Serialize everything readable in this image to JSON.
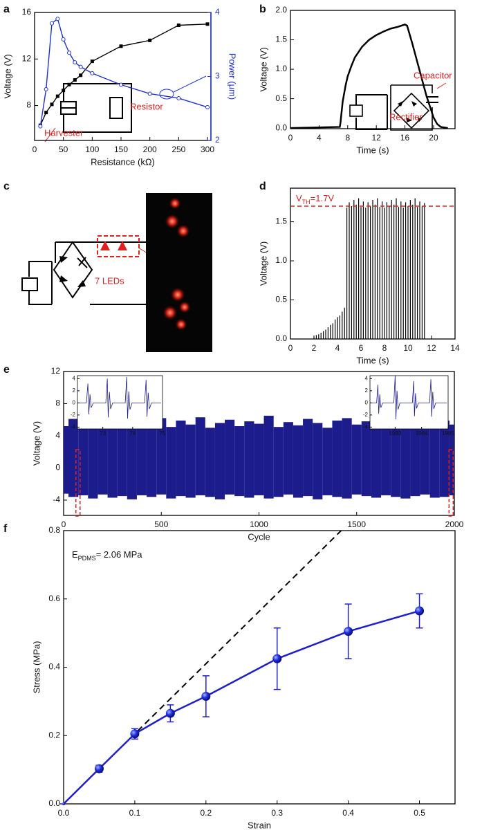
{
  "panel_c": {
    "panel": "c",
    "label": "7 LEDs"
  },
  "chart_data": [
    {
      "panel": "a",
      "type": "line_scatter",
      "x_label": "Resistance (kΩ)",
      "y_label": "Voltage (V)",
      "y2_label": "Power (μm)",
      "x": [
        10,
        20,
        30,
        40,
        50,
        60,
        70,
        80,
        100,
        150,
        200,
        250,
        300
      ],
      "series": [
        {
          "color": "#000000",
          "marker": "square",
          "values": [
            6.3,
            7.4,
            8.1,
            8.8,
            9.3,
            9.8,
            10.2,
            10.6,
            11.8,
            13.1,
            13.6,
            14.9,
            15.0
          ]
        },
        {
          "color": "#1f2fd6",
          "marker": "circle",
          "axis": "y2",
          "values": [
            2.22,
            2.8,
            3.83,
            3.9,
            3.58,
            3.37,
            3.22,
            3.15,
            3.05,
            2.87,
            2.73,
            2.66,
            2.52
          ]
        }
      ],
      "xlim": [
        0,
        306
      ],
      "xticks": [
        0,
        50,
        100,
        150,
        200,
        250,
        300
      ],
      "ylim": [
        5,
        16
      ],
      "yticks": [
        8,
        12,
        16
      ],
      "y2lim": [
        2,
        4
      ],
      "y2ticks": [
        2,
        3,
        4
      ],
      "annotations": [
        "Harvester",
        "Resistor"
      ]
    },
    {
      "panel": "b",
      "type": "line",
      "x_label": "Time (s)",
      "y_label": "Voltage (V)",
      "color": "#000000",
      "x": [
        0,
        6.9,
        7,
        7.3,
        7.7,
        8,
        8.5,
        9,
        10,
        11,
        12,
        13,
        14,
        15,
        16,
        16.3,
        17,
        18,
        19,
        20,
        20.5,
        21,
        22
      ],
      "values": [
        0,
        0.02,
        0.1,
        0.45,
        0.72,
        0.88,
        1.05,
        1.2,
        1.38,
        1.5,
        1.58,
        1.64,
        1.69,
        1.72,
        1.76,
        1.74,
        1.45,
        1.0,
        0.55,
        0.18,
        0.07,
        0.02,
        0.0
      ],
      "xlim": [
        0,
        23
      ],
      "xticks": [
        0,
        4,
        8,
        12,
        16,
        20
      ],
      "ylim": [
        -0.01,
        2.0
      ],
      "yticks": [
        {
          "value": 0,
          "label": "0.0"
        },
        0.5,
        {
          "value": 1,
          "label": "1.0"
        },
        1.5,
        {
          "value": 2,
          "label": "2.0"
        }
      ],
      "annotations": [
        "Capacitor",
        "Rectifier"
      ]
    },
    {
      "panel": "d",
      "type": "spikes",
      "x_label": "Time (s)",
      "y_label": "Voltage (V)",
      "color": "#000000",
      "x": [
        2.0,
        2.2,
        2.4,
        2.6,
        2.8,
        3.0,
        3.2,
        3.4,
        3.6,
        3.8,
        4.0,
        4.2,
        4.4,
        4.6,
        4.8,
        5.0,
        5.2,
        5.4,
        5.6,
        5.8,
        6.0,
        6.2,
        6.4,
        6.6,
        6.8,
        7.0,
        7.2,
        7.4,
        7.6,
        7.8,
        8.0,
        8.2,
        8.4,
        8.6,
        8.8,
        9.0,
        9.2,
        9.4,
        9.6,
        9.8,
        10.0,
        10.2,
        10.4,
        10.6,
        10.8,
        11.0,
        11.2,
        11.4
      ],
      "values": [
        0.03,
        0.05,
        0.06,
        0.08,
        0.1,
        0.12,
        0.15,
        0.18,
        0.2,
        0.25,
        0.28,
        0.3,
        0.35,
        0.4,
        1.68,
        1.75,
        1.7,
        1.78,
        1.72,
        1.8,
        1.69,
        1.76,
        1.68,
        1.75,
        1.7,
        1.78,
        1.72,
        1.8,
        1.69,
        1.76,
        1.68,
        1.75,
        1.7,
        1.78,
        1.72,
        1.8,
        1.69,
        1.76,
        1.68,
        1.75,
        1.7,
        1.78,
        1.72,
        1.8,
        1.69,
        1.76,
        1.7,
        1.74
      ],
      "threshold": {
        "value": 1.7,
        "color": "#e02020",
        "label": [
          "V",
          "TH",
          "=1.7V"
        ]
      },
      "xlim": [
        0,
        14
      ],
      "xticks": [
        0,
        2,
        4,
        6,
        8,
        10,
        12,
        14
      ],
      "ylim": [
        0,
        1.93
      ],
      "yticks": [
        {
          "value": 0,
          "label": "0.0"
        },
        0.5,
        {
          "value": 1,
          "label": "1.0"
        },
        1.5
      ]
    },
    {
      "panel": "e",
      "type": "envelope",
      "x_label": "Cycle",
      "y_label": "Voltage (V)",
      "x": [
        0,
        50,
        100,
        150,
        200,
        250,
        300,
        350,
        400,
        450,
        500,
        550,
        600,
        650,
        700,
        750,
        800,
        850,
        900,
        950,
        1000,
        1050,
        1100,
        1150,
        1200,
        1250,
        1300,
        1350,
        1400,
        1450,
        1500,
        1550,
        1600,
        1650,
        1700,
        1750,
        1800,
        1850,
        1900,
        1950,
        2000
      ],
      "series": [
        {
          "color": "#1c1c8c",
          "values": [
            5.2,
            6.1,
            5.0,
            5.8,
            6.4,
            5.5,
            4.9,
            6.0,
            5.3,
            5.7,
            6.2,
            5.1,
            5.9,
            5.4,
            6.3,
            5.0,
            5.6,
            6.0,
            5.2,
            5.8,
            5.5,
            6.5,
            5.1,
            5.7,
            5.3,
            6.1,
            5.6,
            5.0,
            5.9,
            6.2,
            5.4,
            5.8,
            6.6,
            5.2,
            6.0,
            5.5,
            5.7,
            6.3,
            5.1,
            5.9,
            5.4
          ]
        },
        {
          "color": "#1c1c8c",
          "values": [
            -3.2,
            -3.6,
            -3.4,
            -3.8,
            -3.3,
            -3.7,
            -3.5,
            -3.9,
            -3.4,
            -3.6,
            -3.3,
            -3.8,
            -3.5,
            -3.7,
            -3.4,
            -3.6,
            -3.9,
            -3.3,
            -3.5,
            -3.7,
            -3.4,
            -3.8,
            -3.6,
            -3.3,
            -3.7,
            -3.5,
            -3.9,
            -3.4,
            -3.6,
            -3.8,
            -3.3,
            -3.5,
            -3.7,
            -3.4,
            -3.6,
            -3.8,
            -3.5,
            -3.3,
            -3.7,
            -3.6,
            -3.4
          ]
        }
      ],
      "xlim": [
        0,
        2000
      ],
      "xticks": [
        0,
        500,
        1000,
        1500,
        2000
      ],
      "ylim": [
        -5.9,
        12
      ],
      "yticks": [
        -4,
        0,
        4,
        8,
        12
      ],
      "insets": [
        {
          "x": [
            72.2,
            72.45,
            72.5,
            72.53,
            72.57,
            72.61,
            72.68,
            73.1,
            73.15,
            73.18,
            73.22,
            73.26,
            73.33,
            73.75,
            73.8,
            73.83,
            73.87,
            73.91,
            73.98,
            74.4,
            74.45,
            74.48,
            74.52,
            74.56,
            74.63,
            74.95
          ],
          "values": [
            0,
            0,
            3.2,
            -1.9,
            1.4,
            -0.8,
            0,
            0,
            4,
            -2.4,
            1.8,
            -1,
            0,
            0,
            4.3,
            -2.6,
            1.9,
            -1.1,
            0,
            0,
            3.8,
            -2.3,
            1.7,
            -1,
            0,
            0
          ],
          "xlim": [
            72.15,
            75
          ],
          "xticks": [
            73,
            74,
            75
          ],
          "ylim": [
            -4.3,
            4.5
          ],
          "yticks": [
            -4,
            -2,
            0,
            2,
            4
          ]
        },
        {
          "x": [
            1982.1,
            1982.3,
            1982.35,
            1982.38,
            1982.42,
            1982.46,
            1982.53,
            1982.95,
            1983,
            1983.03,
            1983.07,
            1983.11,
            1983.18,
            1983.65,
            1983.7,
            1983.73,
            1983.77,
            1983.81,
            1983.88,
            1984.3,
            1984.35,
            1984.38,
            1984.42,
            1984.46,
            1984.53,
            1984.95
          ],
          "values": [
            0,
            0,
            3,
            -1.8,
            1.4,
            -0.8,
            0,
            0,
            4.5,
            -2.7,
            2,
            -1.1,
            0,
            0,
            3.6,
            -2.2,
            1.6,
            -0.9,
            0,
            0,
            3.9,
            -2.3,
            1.8,
            -1,
            0,
            0
          ],
          "xlim": [
            1982.05,
            1985
          ],
          "xticks": [
            1983,
            1984,
            1985
          ],
          "ylim": [
            -4.3,
            4.5
          ],
          "yticks": [
            -4,
            -2,
            0,
            2,
            4
          ]
        }
      ]
    },
    {
      "panel": "f",
      "type": "errorbar",
      "x_label": "Strain",
      "y_label": "Stress (MPa)",
      "color": "#1f1fd0",
      "x": [
        0,
        0.05,
        0.1,
        0.15,
        0.2,
        0.3,
        0.4,
        0.5
      ],
      "values": [
        0,
        0.103,
        0.205,
        0.265,
        0.315,
        0.425,
        0.505,
        0.565
      ],
      "errors": [
        0,
        0.01,
        0.015,
        0.025,
        0.06,
        0.09,
        0.08,
        0.05
      ],
      "fit": {
        "x": [
          0,
          0.39
        ],
        "values": [
          0,
          0.8
        ]
      },
      "annotation": [
        "E",
        "PDMS",
        "= 2.06 MPa"
      ],
      "xlim": [
        0,
        0.55
      ],
      "xticks": [
        {
          "value": 0,
          "label": "0.0"
        },
        0.1,
        0.2,
        0.3,
        0.4,
        0.5
      ],
      "ylim": [
        0,
        0.8
      ],
      "yticks": [
        {
          "value": 0,
          "label": "0.0"
        },
        0.2,
        0.4,
        0.6,
        0.8
      ]
    }
  ]
}
